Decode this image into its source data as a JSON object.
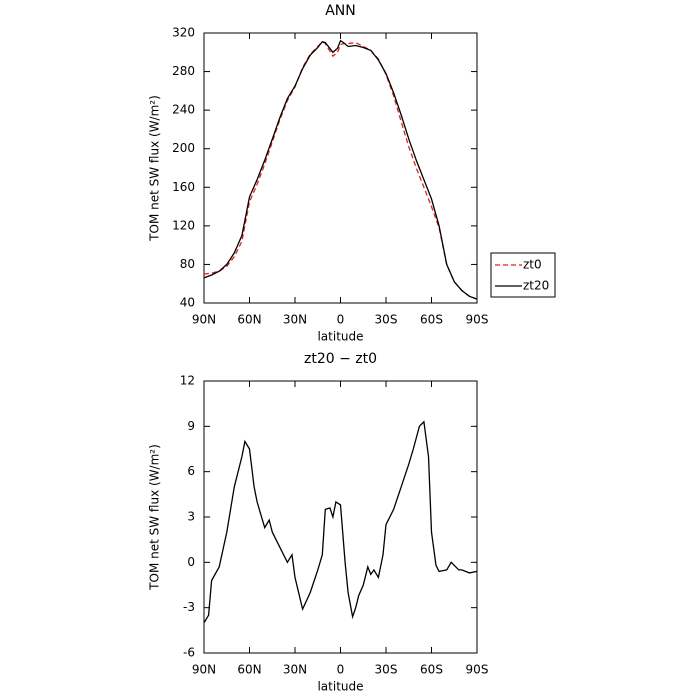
{
  "chart_data": [
    {
      "type": "line",
      "title": "ANN",
      "xlabel": "latitude",
      "ylabel": "TOM net SW flux (W/m²)",
      "x": [
        90,
        85,
        80,
        75,
        70,
        65,
        60,
        55,
        50,
        45,
        40,
        35,
        30,
        25,
        20,
        15,
        12,
        10,
        5,
        2,
        0,
        -2,
        -5,
        -10,
        -15,
        -20,
        -25,
        -30,
        -35,
        -40,
        -45,
        -50,
        -55,
        -60,
        -65,
        -70,
        -75,
        -80,
        -85,
        -90
      ],
      "series": [
        {
          "name": "zt0",
          "color": "#e0201b",
          "line_style": "dashed",
          "values": [
            70,
            71,
            73,
            78,
            88,
            104,
            145,
            163,
            184,
            207,
            230,
            250,
            264,
            284,
            298,
            306,
            311,
            309,
            296,
            300,
            308,
            309,
            309,
            310,
            306,
            302,
            293,
            277,
            255,
            228,
            202,
            180,
            160,
            140,
            118,
            80,
            62,
            53,
            47,
            44
          ]
        },
        {
          "name": "zt20",
          "color": "#000000",
          "line_style": "solid",
          "values": [
            66,
            69,
            73,
            80,
            92,
            110,
            150,
            168,
            188,
            210,
            232,
            252,
            265,
            283,
            297,
            305,
            311,
            310,
            300,
            304,
            312,
            310,
            306,
            307,
            305,
            302,
            292,
            278,
            258,
            235,
            210,
            188,
            168,
            148,
            120,
            80,
            62,
            53,
            47,
            44
          ]
        }
      ],
      "xlim": [
        90,
        -90
      ],
      "xticks": [
        {
          "value": 90,
          "label": "90N"
        },
        {
          "value": 60,
          "label": "60N"
        },
        {
          "value": 30,
          "label": "30N"
        },
        0,
        {
          "value": -30,
          "label": "30S"
        },
        {
          "value": -60,
          "label": "60S"
        },
        {
          "value": -90,
          "label": "90S"
        }
      ],
      "ylim": [
        40,
        320
      ],
      "yticks": [
        40,
        80,
        120,
        160,
        200,
        240,
        280,
        320
      ],
      "legend": "right"
    },
    {
      "type": "line",
      "title": "zt20 − zt0",
      "xlabel": "latitude",
      "ylabel": "TOM net SW flux (W/m²)",
      "x": [
        90,
        87,
        85,
        80,
        75,
        70,
        65,
        63,
        60,
        57,
        55,
        50,
        47,
        45,
        40,
        35,
        32,
        30,
        25,
        20,
        15,
        12,
        10,
        7,
        5,
        3,
        0,
        -3,
        -5,
        -8,
        -10,
        -12,
        -15,
        -18,
        -20,
        -22,
        -25,
        -28,
        -30,
        -35,
        -40,
        -45,
        -48,
        -52,
        -55,
        -58,
        -60,
        -63,
        -65,
        -70,
        -73,
        -75,
        -78,
        -80,
        -85,
        -90
      ],
      "series": [
        {
          "name": "zt20 − zt0",
          "color": "#000000",
          "line_style": "solid",
          "values": [
            -4,
            -3.5,
            -1.2,
            -0.3,
            2,
            5,
            7,
            8,
            7.5,
            5,
            4,
            2.3,
            2.8,
            2,
            1,
            0,
            0.5,
            -1,
            -3.1,
            -2,
            -0.5,
            0.5,
            3.5,
            3.6,
            3,
            4,
            3.8,
            0,
            -2,
            -3.6,
            -3,
            -2.2,
            -1.5,
            -0.3,
            -0.8,
            -0.5,
            -1,
            0.5,
            2.5,
            3.5,
            5,
            6.5,
            7.5,
            9,
            9.3,
            7,
            2,
            -0.2,
            -0.6,
            -0.5,
            0,
            -0.2,
            -0.5,
            -0.5,
            -0.7,
            -0.6
          ]
        }
      ],
      "xlim": [
        90,
        -90
      ],
      "xticks": [
        {
          "value": 90,
          "label": "90N"
        },
        {
          "value": 60,
          "label": "60N"
        },
        {
          "value": 30,
          "label": "30N"
        },
        0,
        {
          "value": -30,
          "label": "30S"
        },
        {
          "value": -60,
          "label": "60S"
        },
        {
          "value": -90,
          "label": "90S"
        }
      ],
      "ylim": [
        -6,
        12
      ],
      "yticks": [
        -6,
        -3,
        0,
        3,
        6,
        9,
        12
      ]
    }
  ]
}
